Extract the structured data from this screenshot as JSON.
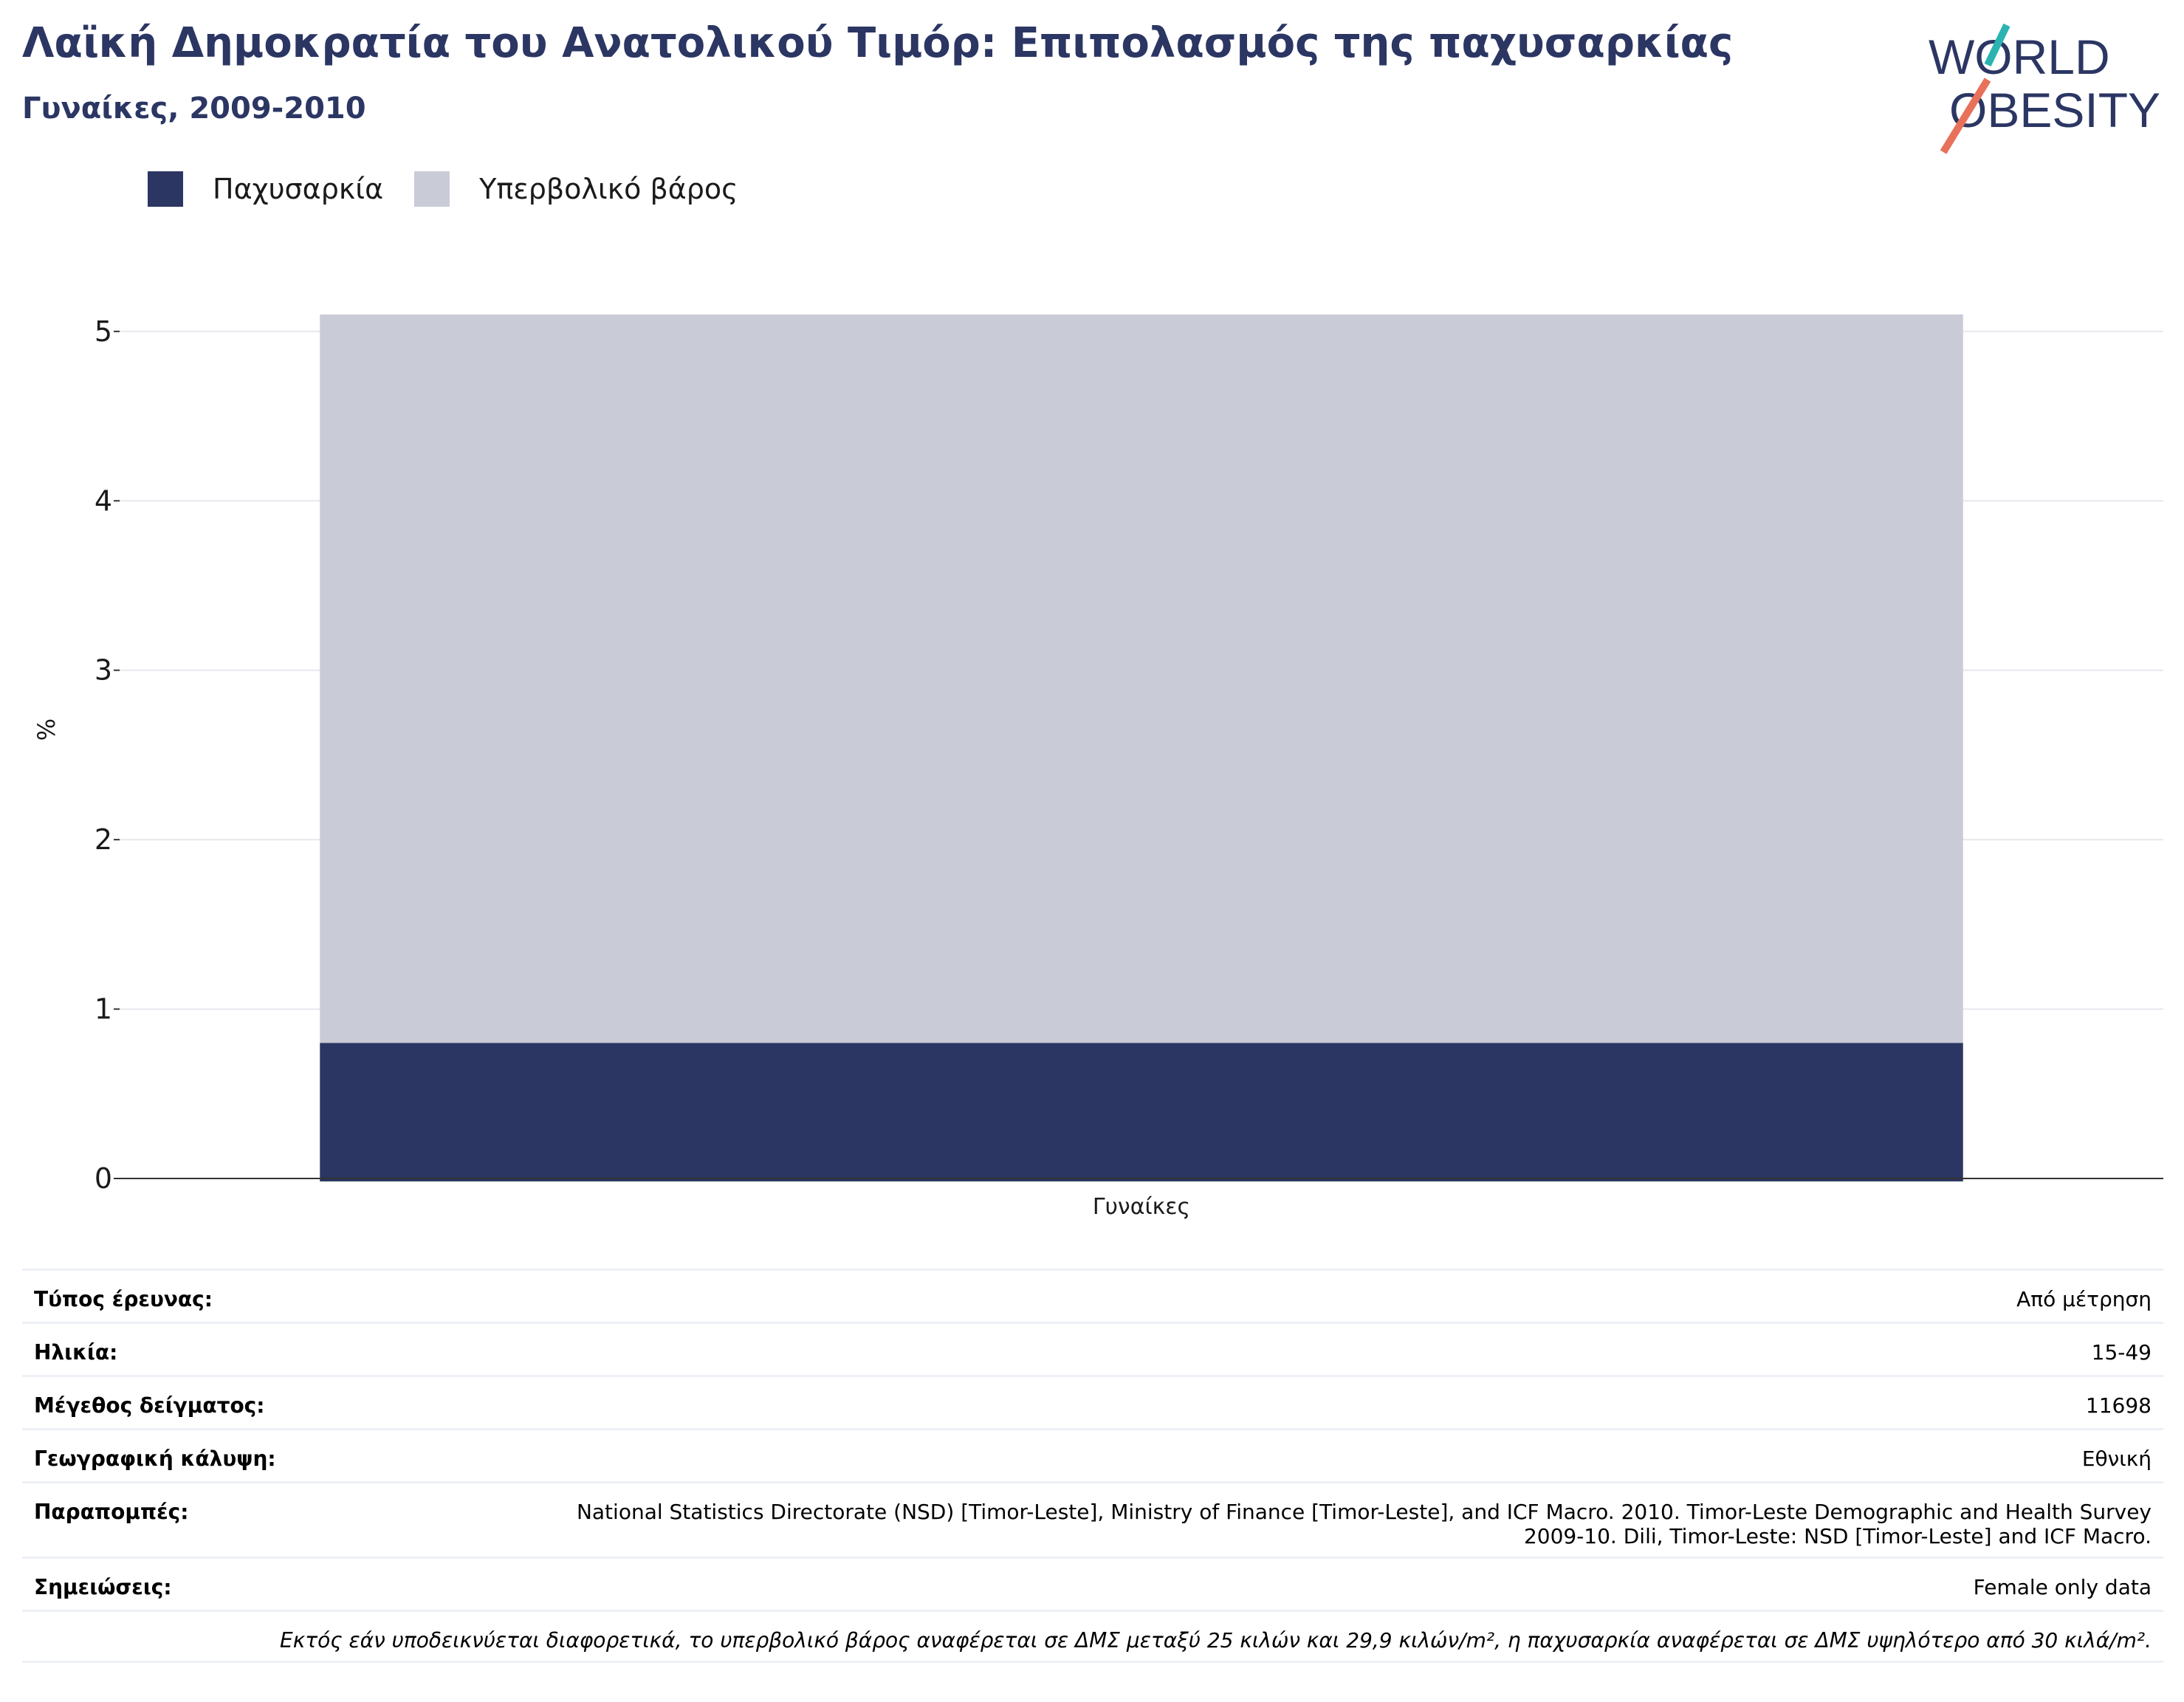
{
  "header": {
    "title": "Λαϊκή Δημοκρατία του Ανατολικού Τιμόρ: Επιπολασμός της παχυσαρκίας",
    "subtitle": "Γυναίκες, 2009-2010"
  },
  "logo": {
    "line1": "WORLD",
    "line2": "OBESITY"
  },
  "legend": [
    {
      "label": "Παχυσαρκία",
      "color": "#2b3663"
    },
    {
      "label": "Υπερβολικό βάρος",
      "color": "#c9cbd7"
    }
  ],
  "chart_data": {
    "type": "bar",
    "stacked": true,
    "categories": [
      "Γυναίκες"
    ],
    "series": [
      {
        "name": "Παχυσαρκία",
        "values": [
          0.8
        ],
        "color": "#2b3663"
      },
      {
        "name": "Υπερβολικό βάρος",
        "values": [
          4.3
        ],
        "color": "#c9cbd7"
      }
    ],
    "ylabel": "%",
    "xlabel": "",
    "ylim": [
      0,
      5.3
    ],
    "yticks": [
      0,
      1,
      2,
      3,
      4,
      5
    ],
    "grid": true
  },
  "info": {
    "rows": [
      {
        "key": "Τύπος έρευνας:",
        "value": "Από μέτρηση"
      },
      {
        "key": "Ηλικία:",
        "value": "15-49"
      },
      {
        "key": "Μέγεθος δείγματος:",
        "value": "11698"
      },
      {
        "key": "Γεωγραφική κάλυψη:",
        "value": "Εθνική"
      },
      {
        "key": "Παραπομπές:",
        "value": "National Statistics Directorate (NSD) [Timor-Leste], Ministry of Finance [Timor-Leste], and ICF Macro. 2010. Timor-Leste Demographic and Health Survey 2009-10. Dili, Timor-Leste: NSD [Timor-Leste] and ICF Macro."
      },
      {
        "key": "Σημειώσεις:",
        "value": "Female only data"
      }
    ],
    "footnote": "Εκτός εάν υποδεικνύεται διαφορετικά, το υπερβολικό βάρος αναφέρεται σε ΔΜΣ μεταξύ 25 κιλών και 29,9 κιλών/m², η παχυσαρκία αναφέρεται σε ΔΜΣ υψηλότερο από 30 κιλά/m²."
  }
}
